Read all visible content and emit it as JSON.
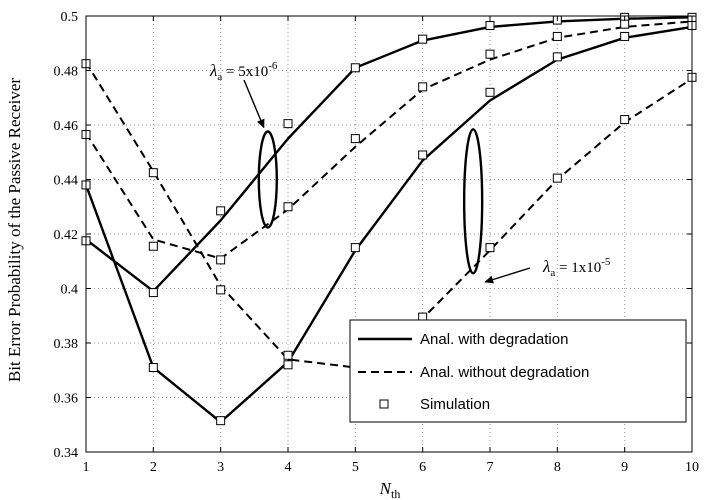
{
  "chart_data": {
    "type": "line",
    "xlabel": "N_th",
    "ylabel": "Bit Error Probability of the Passive Receiver",
    "xlim": [
      1,
      10
    ],
    "ylim": [
      0.34,
      0.5
    ],
    "x_ticks": [
      1,
      2,
      3,
      4,
      5,
      6,
      7,
      8,
      9,
      10
    ],
    "y_ticks": [
      0.34,
      0.36,
      0.38,
      0.4,
      0.42,
      0.44,
      0.46,
      0.48,
      0.5
    ],
    "grid": true,
    "legend_position": "bottom-right",
    "legend": [
      {
        "label": "Anal. with degradation",
        "style": "solid"
      },
      {
        "label": "Anal. without degradation",
        "style": "dashed"
      },
      {
        "label": "Simulation",
        "style": "square-marker"
      }
    ],
    "x": [
      1,
      2,
      3,
      4,
      5,
      6,
      7,
      8,
      9,
      10
    ],
    "series": [
      {
        "group": "λa = 5x10^-6",
        "style": "solid",
        "values": [
          0.418,
          0.399,
          0.425,
          0.455,
          0.481,
          0.491,
          0.496,
          0.498,
          0.499,
          0.4995
        ]
      },
      {
        "group": "λa = 5x10^-6",
        "style": "dashed",
        "values": [
          0.457,
          0.418,
          0.411,
          0.429,
          0.452,
          0.473,
          0.484,
          0.492,
          0.496,
          0.498
        ]
      },
      {
        "group": "λa = 1x10^-5",
        "style": "solid",
        "values": [
          0.438,
          0.371,
          0.351,
          0.373,
          0.414,
          0.447,
          0.469,
          0.484,
          0.492,
          0.496
        ]
      },
      {
        "group": "λa = 1x10^-5",
        "style": "dashed",
        "values": [
          0.483,
          0.443,
          0.401,
          0.374,
          0.371,
          0.389,
          0.414,
          0.44,
          0.461,
          0.477
        ]
      }
    ],
    "simulation_points": [
      {
        "x": 1,
        "y": 0.4175
      },
      {
        "x": 2,
        "y": 0.3985
      },
      {
        "x": 3,
        "y": 0.4285
      },
      {
        "x": 4,
        "y": 0.4605
      },
      {
        "x": 5,
        "y": 0.481
      },
      {
        "x": 6,
        "y": 0.4915
      },
      {
        "x": 7,
        "y": 0.4965
      },
      {
        "x": 8,
        "y": 0.4985
      },
      {
        "x": 9,
        "y": 0.4995
      },
      {
        "x": 10,
        "y": 0.4995
      },
      {
        "x": 1,
        "y": 0.4565
      },
      {
        "x": 2,
        "y": 0.4155
      },
      {
        "x": 3,
        "y": 0.4105
      },
      {
        "x": 4,
        "y": 0.43
      },
      {
        "x": 5,
        "y": 0.455
      },
      {
        "x": 6,
        "y": 0.474
      },
      {
        "x": 7,
        "y": 0.486
      },
      {
        "x": 8,
        "y": 0.4925
      },
      {
        "x": 9,
        "y": 0.497
      },
      {
        "x": 10,
        "y": 0.4985
      },
      {
        "x": 1,
        "y": 0.438
      },
      {
        "x": 2,
        "y": 0.371
      },
      {
        "x": 3,
        "y": 0.3515
      },
      {
        "x": 4,
        "y": 0.372
      },
      {
        "x": 5,
        "y": 0.415
      },
      {
        "x": 6,
        "y": 0.449
      },
      {
        "x": 7,
        "y": 0.472
      },
      {
        "x": 8,
        "y": 0.485
      },
      {
        "x": 9,
        "y": 0.4925
      },
      {
        "x": 10,
        "y": 0.4965
      },
      {
        "x": 1,
        "y": 0.4825
      },
      {
        "x": 2,
        "y": 0.4425
      },
      {
        "x": 3,
        "y": 0.3995
      },
      {
        "x": 4,
        "y": 0.3755
      },
      {
        "x": 5,
        "y": 0.371
      },
      {
        "x": 6,
        "y": 0.3895
      },
      {
        "x": 7,
        "y": 0.415
      },
      {
        "x": 8,
        "y": 0.4405
      },
      {
        "x": 9,
        "y": 0.462
      },
      {
        "x": 10,
        "y": 0.4775
      }
    ],
    "annotations": [
      {
        "label": "λa = 5x10^-6",
        "target_x": 3.7,
        "target_y": 0.44
      },
      {
        "label": "λa = 1x10^-5",
        "target_x": 6.75,
        "target_y": 0.432
      }
    ],
    "colors": {
      "line": "#000000",
      "grid": "#9a9a9a",
      "background": "#ffffff"
    }
  }
}
